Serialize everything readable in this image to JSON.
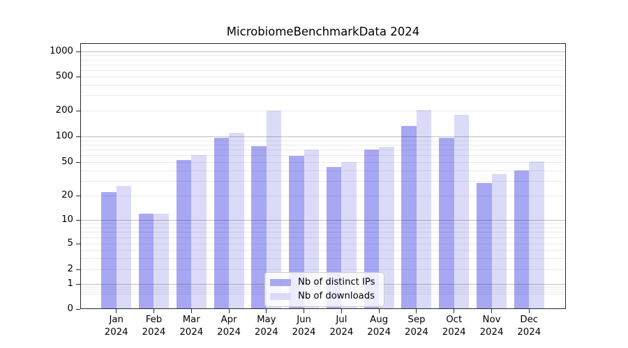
{
  "figure": {
    "title": "MicrobiomeBenchmarkData 2024"
  },
  "chart_data": {
    "type": "bar",
    "title": "MicrobiomeBenchmarkData 2024",
    "categories": [
      "Jan 2024",
      "Feb 2024",
      "Mar 2024",
      "Apr 2024",
      "May 2024",
      "Jun 2024",
      "Jul 2024",
      "Aug 2024",
      "Sep 2024",
      "Oct 2024",
      "Nov 2024",
      "Dec 2024"
    ],
    "series": [
      {
        "name": "Nb of distinct IPs",
        "color": "#a7a7f3",
        "values": [
          22,
          12,
          53,
          96,
          77,
          59,
          44,
          70,
          132,
          96,
          28,
          40
        ]
      },
      {
        "name": "Nb of downloads",
        "color": "#dbdbf9",
        "values": [
          26,
          12,
          60,
          110,
          200,
          70,
          50,
          75,
          204,
          178,
          36,
          51
        ]
      }
    ],
    "xlabel": "",
    "ylabel": "",
    "yscale": "symlog",
    "yticks": [
      0,
      1,
      2,
      5,
      10,
      20,
      50,
      100,
      200,
      500,
      1000
    ],
    "ylim": [
      0,
      1250
    ],
    "grid": true,
    "legend_position": "lower center",
    "colors": {
      "distinct_ips": "#a7a7f3",
      "downloads": "#dbdbf9",
      "grid_major": "#bfbfbf",
      "grid_minor": "#ececec",
      "axis": "#262626",
      "text": "#000000"
    }
  }
}
